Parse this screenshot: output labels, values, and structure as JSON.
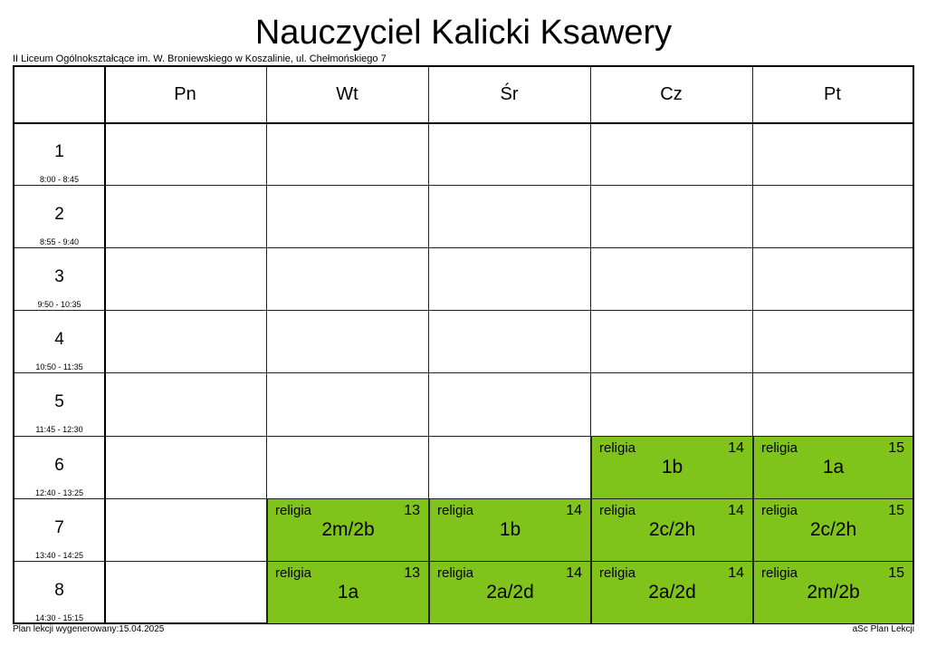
{
  "title": "Nauczyciel Kalicki Ksawery",
  "school": "II Liceum Ogólnokształcące im. W. Broniewskiego w Koszalinie, ul. Chełmońskiego 7",
  "days": [
    "Pn",
    "Wt",
    "Śr",
    "Cz",
    "Pt"
  ],
  "periods": [
    {
      "num": "1",
      "time": "8:00 - 8:45"
    },
    {
      "num": "2",
      "time": "8:55 - 9:40"
    },
    {
      "num": "3",
      "time": "9:50 - 10:35"
    },
    {
      "num": "4",
      "time": "10:50 - 11:35"
    },
    {
      "num": "5",
      "time": "11:45 - 12:30"
    },
    {
      "num": "6",
      "time": "12:40 - 13:25"
    },
    {
      "num": "7",
      "time": "13:40 - 14:25"
    },
    {
      "num": "8",
      "time": "14:30 - 15:15"
    }
  ],
  "lesson_color": "#80c31a",
  "lessons": [
    {
      "day": 3,
      "period": 5,
      "subject": "religia",
      "room": "14",
      "class": "1b"
    },
    {
      "day": 4,
      "period": 5,
      "subject": "religia",
      "room": "15",
      "class": "1a"
    },
    {
      "day": 1,
      "period": 6,
      "subject": "religia",
      "room": "13",
      "class": "2m/2b"
    },
    {
      "day": 2,
      "period": 6,
      "subject": "religia",
      "room": "14",
      "class": "1b"
    },
    {
      "day": 3,
      "period": 6,
      "subject": "religia",
      "room": "14",
      "class": "2c/2h"
    },
    {
      "day": 4,
      "period": 6,
      "subject": "religia",
      "room": "15",
      "class": "2c/2h"
    },
    {
      "day": 1,
      "period": 7,
      "subject": "religia",
      "room": "13",
      "class": "1a"
    },
    {
      "day": 2,
      "period": 7,
      "subject": "religia",
      "room": "14",
      "class": "2a/2d"
    },
    {
      "day": 3,
      "period": 7,
      "subject": "religia",
      "room": "14",
      "class": "2a/2d"
    },
    {
      "day": 4,
      "period": 7,
      "subject": "religia",
      "room": "15",
      "class": "2m/2b"
    }
  ],
  "footer": {
    "generated": "Plan lekcji wygenerowany:15.04.2025",
    "app": "aSc Plan Lekcji"
  }
}
